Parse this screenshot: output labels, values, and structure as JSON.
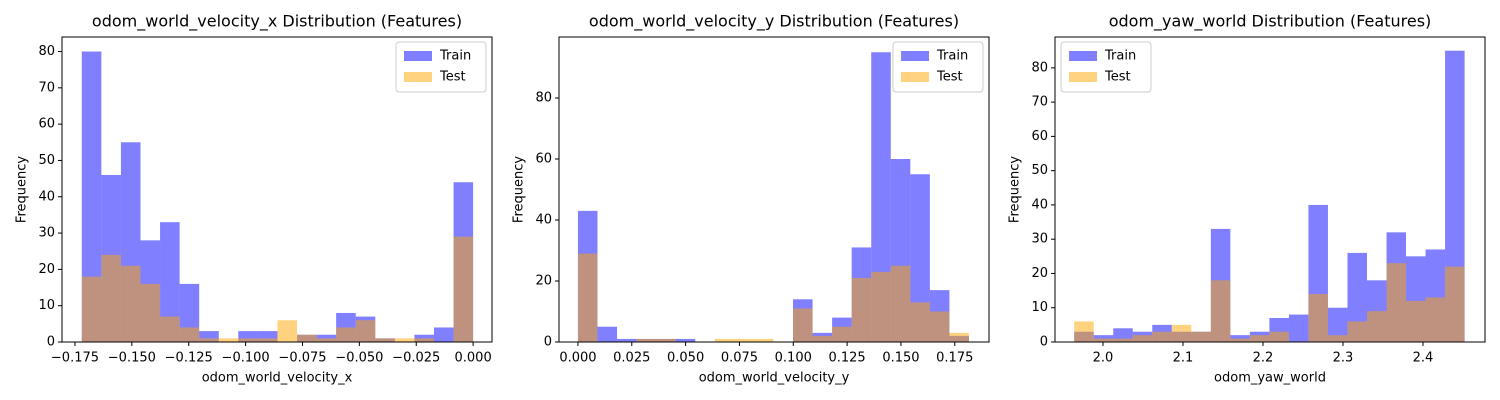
{
  "chart_data": [
    {
      "type": "histogram",
      "title": "odom_world_velocity_x Distribution (Features)",
      "xlabel": "odom_world_velocity_x",
      "ylabel": "Frequency",
      "bins": [
        -0.172,
        -0.1634,
        -0.1548,
        -0.1462,
        -0.1376,
        -0.129,
        -0.1204,
        -0.1118,
        -0.1032,
        -0.0946,
        -0.086,
        -0.0774,
        -0.0688,
        -0.0602,
        -0.0516,
        -0.043,
        -0.0344,
        -0.0258,
        -0.0172,
        -0.0086,
        0
      ],
      "series": [
        {
          "name": "Train",
          "color": "blue",
          "alpha": 0.5,
          "values": [
            80,
            46,
            55,
            28,
            33,
            16,
            3,
            0,
            3,
            3,
            0,
            2,
            2,
            8,
            7,
            1,
            0,
            2,
            4,
            44
          ]
        },
        {
          "name": "Test",
          "color": "orange",
          "alpha": 0.5,
          "values": [
            18,
            24,
            21,
            16,
            7,
            4,
            1,
            1,
            1,
            1,
            6,
            2,
            1,
            4,
            6,
            1,
            1,
            1,
            0,
            29
          ]
        }
      ],
      "xlim": [
        -0.1807,
        0.0083
      ],
      "ylim": [
        0,
        84
      ],
      "xticks": [
        {
          "value": -0.175,
          "label": "−0.175"
        },
        {
          "value": -0.15,
          "label": "−0.150"
        },
        {
          "value": -0.125,
          "label": "−0.125"
        },
        {
          "value": -0.1,
          "label": "−0.100"
        },
        {
          "value": -0.075,
          "label": "−0.075"
        },
        {
          "value": -0.05,
          "label": "−0.050"
        },
        {
          "value": -0.025,
          "label": "−0.025"
        },
        {
          "value": 0,
          "label": "0.000"
        }
      ],
      "yticks": [
        0,
        10,
        20,
        30,
        40,
        50,
        60,
        70,
        80
      ],
      "legend": "upper right"
    },
    {
      "type": "histogram",
      "title": "odom_world_velocity_y Distribution (Features)",
      "xlabel": "odom_world_velocity_y",
      "ylabel": "Frequency",
      "bins": [
        0,
        0.00908,
        0.01816,
        0.02724,
        0.03632,
        0.0454,
        0.05448,
        0.06356,
        0.07264,
        0.08172,
        0.0908,
        0.09988,
        0.10896,
        0.11804,
        0.12712,
        0.1362,
        0.14528,
        0.15436,
        0.16344,
        0.17252,
        0.1816
      ],
      "series": [
        {
          "name": "Train",
          "color": "blue",
          "alpha": 0.5,
          "values": [
            43,
            5,
            1,
            1,
            1,
            1,
            0,
            0,
            0,
            0,
            0,
            14,
            3,
            8,
            31,
            95,
            60,
            55,
            17,
            2
          ]
        },
        {
          "name": "Test",
          "color": "orange",
          "alpha": 0.5,
          "values": [
            29,
            0,
            0,
            1,
            1,
            0,
            0,
            1,
            1,
            1,
            0,
            11,
            2,
            5,
            21,
            23,
            25,
            13,
            10,
            3
          ]
        }
      ],
      "xlim": [
        -0.0088,
        0.1909
      ],
      "ylim": [
        0,
        100
      ],
      "xticks": [
        {
          "value": 0,
          "label": "0.000"
        },
        {
          "value": 0.025,
          "label": "0.025"
        },
        {
          "value": 0.05,
          "label": "0.050"
        },
        {
          "value": 0.075,
          "label": "0.075"
        },
        {
          "value": 0.1,
          "label": "0.100"
        },
        {
          "value": 0.125,
          "label": "0.125"
        },
        {
          "value": 0.15,
          "label": "0.150"
        },
        {
          "value": 0.175,
          "label": "0.175"
        }
      ],
      "yticks": [
        0,
        20,
        40,
        60,
        80
      ],
      "legend": "upper right"
    },
    {
      "type": "histogram",
      "title": "odom_yaw_world Distribution (Features)",
      "xlabel": "odom_yaw_world",
      "ylabel": "Frequency",
      "bins": [
        1.964,
        1.9884,
        2.0128,
        2.0372,
        2.0616,
        2.086,
        2.1104,
        2.1348,
        2.1592,
        2.1836,
        2.208,
        2.2324,
        2.2568,
        2.2812,
        2.3056,
        2.33,
        2.3544,
        2.3788,
        2.4032,
        2.4276,
        2.452
      ],
      "series": [
        {
          "name": "Train",
          "color": "blue",
          "alpha": 0.5,
          "values": [
            3,
            2,
            4,
            3,
            5,
            3,
            3,
            33,
            2,
            3,
            7,
            8,
            40,
            10,
            26,
            18,
            32,
            25,
            27,
            85
          ]
        },
        {
          "name": "Test",
          "color": "orange",
          "alpha": 0.5,
          "values": [
            6,
            1,
            1,
            2,
            3,
            5,
            3,
            18,
            1,
            2,
            3,
            0,
            14,
            2,
            6,
            9,
            23,
            12,
            13,
            22
          ]
        }
      ],
      "xlim": [
        1.94,
        2.4775
      ],
      "ylim": [
        0,
        89
      ],
      "xticks": [
        {
          "value": 2.0,
          "label": "2.0"
        },
        2.1,
        2.2,
        2.3,
        2.4
      ],
      "yticks": [
        0,
        10,
        20,
        30,
        40,
        50,
        60,
        70,
        80
      ],
      "legend": "upper left"
    }
  ]
}
